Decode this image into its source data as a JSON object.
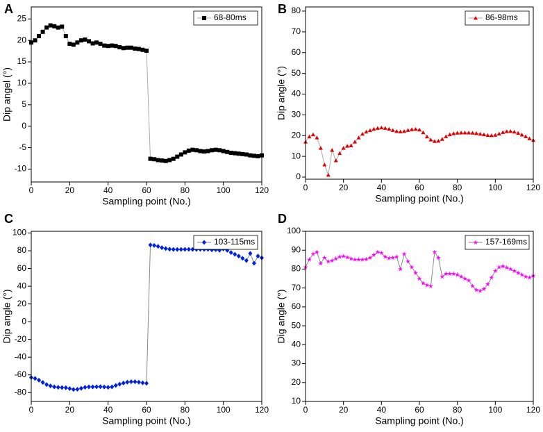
{
  "chart_data": [
    {
      "type": "line",
      "label": "A",
      "xlabel": "Sampling point (No.)",
      "ylabel": "Dip angel (°)",
      "x": [
        0,
        2,
        4,
        6,
        8,
        10,
        12,
        14,
        16,
        18,
        20,
        22,
        24,
        26,
        28,
        30,
        32,
        34,
        36,
        38,
        40,
        42,
        44,
        46,
        48,
        50,
        52,
        54,
        56,
        58,
        60,
        62,
        64,
        66,
        68,
        70,
        72,
        74,
        76,
        78,
        80,
        82,
        84,
        86,
        88,
        90,
        92,
        94,
        96,
        98,
        100,
        102,
        104,
        106,
        108,
        110,
        112,
        114,
        116,
        118,
        120
      ],
      "series": [
        {
          "name": "68-80ms",
          "color": "#000000",
          "line_color": "#aaaaaa",
          "marker": "square",
          "values": [
            19.5,
            20,
            21,
            22,
            23,
            23.5,
            23.3,
            23,
            23.2,
            21,
            19.2,
            19,
            19.5,
            20,
            20.2,
            19.8,
            19.3,
            19.5,
            19.2,
            18.8,
            18.7,
            18.8,
            18.7,
            18.4,
            18.2,
            18.3,
            18.3,
            18.1,
            18,
            17.8,
            17.6,
            -7.6,
            -7.7,
            -7.9,
            -8,
            -8.1,
            -7.9,
            -7.6,
            -7.1,
            -6.6,
            -6.1,
            -5.7,
            -5.5,
            -5.6,
            -5.8,
            -5.9,
            -5.8,
            -5.6,
            -5.5,
            -5.6,
            -5.8,
            -6,
            -6.2,
            -6.3,
            -6.4,
            -6.5,
            -6.6,
            -6.8,
            -6.9,
            -7,
            -6.8
          ]
        }
      ],
      "xlim": [
        0,
        120
      ],
      "xticks": [
        0,
        20,
        40,
        60,
        80,
        100,
        120
      ],
      "ylim": [
        -13,
        27.8
      ],
      "yticks": [
        -10,
        -5,
        0,
        5,
        10,
        15,
        20,
        25
      ],
      "legend": "upper right"
    },
    {
      "type": "line",
      "label": "B",
      "xlabel": "Sampling point (No.)",
      "ylabel": "Dip angle (°)",
      "x": [
        0,
        2,
        4,
        6,
        8,
        10,
        12,
        14,
        16,
        18,
        20,
        22,
        24,
        26,
        28,
        30,
        32,
        34,
        36,
        38,
        40,
        42,
        44,
        46,
        48,
        50,
        52,
        54,
        56,
        58,
        60,
        62,
        64,
        66,
        68,
        70,
        72,
        74,
        76,
        78,
        80,
        82,
        84,
        86,
        88,
        90,
        92,
        94,
        96,
        98,
        100,
        102,
        104,
        106,
        108,
        110,
        112,
        114,
        116,
        118,
        120
      ],
      "series": [
        {
          "name": "86-98ms",
          "color": "#e00000",
          "line_color": "#aaaaaa",
          "marker": "triangle",
          "values": [
            17,
            19.5,
            20.5,
            19,
            14,
            6,
            1,
            13,
            8,
            11.5,
            14,
            15,
            15.2,
            17,
            19,
            20.8,
            21.8,
            22.5,
            23.2,
            23.6,
            23.8,
            23.6,
            23.2,
            22.6,
            22.1,
            21.9,
            22.1,
            22.6,
            23,
            23.1,
            22.8,
            21.5,
            19.5,
            18,
            17.3,
            17.4,
            18.3,
            19.6,
            20.5,
            21,
            21.3,
            21.4,
            21.4,
            21.4,
            21.3,
            21.1,
            20.8,
            20.5,
            20.2,
            20.1,
            20.3,
            20.9,
            21.6,
            22,
            22.1,
            21.8,
            21.2,
            20.4,
            19.6,
            18.6,
            17.8
          ]
        }
      ],
      "xlim": [
        0,
        120
      ],
      "xticks": [
        0,
        20,
        40,
        60,
        80,
        100,
        120
      ],
      "ylim": [
        -1,
        82
      ],
      "yticks": [
        0,
        10,
        20,
        30,
        40,
        50,
        60,
        70,
        80
      ],
      "legend": "upper right"
    },
    {
      "type": "line",
      "label": "C",
      "xlabel": "Sampling point (No.)",
      "ylabel": "Dip angle (°)",
      "x": [
        0,
        2,
        4,
        6,
        8,
        10,
        12,
        14,
        16,
        18,
        20,
        22,
        24,
        26,
        28,
        30,
        32,
        34,
        36,
        38,
        40,
        42,
        44,
        46,
        48,
        50,
        52,
        54,
        56,
        58,
        60,
        62,
        64,
        66,
        68,
        70,
        72,
        74,
        76,
        78,
        80,
        82,
        84,
        86,
        88,
        90,
        92,
        94,
        96,
        98,
        100,
        102,
        104,
        106,
        108,
        110,
        112,
        114,
        116,
        118,
        120
      ],
      "series": [
        {
          "name": "103-115ms",
          "color": "#0020e0",
          "line_color": "#888888",
          "marker": "diamond",
          "values": [
            -63,
            -64,
            -66,
            -68.5,
            -71,
            -72.5,
            -73.5,
            -74,
            -74.3,
            -74.5,
            -75.5,
            -76.5,
            -76.3,
            -75.2,
            -74,
            -73.5,
            -73.5,
            -73.4,
            -73.3,
            -73.6,
            -74,
            -73.5,
            -72,
            -70.5,
            -69.2,
            -68.3,
            -67.8,
            -67.8,
            -68.3,
            -69,
            -69.5,
            86.5,
            86,
            85,
            83.5,
            82.5,
            81.8,
            81.5,
            81.5,
            81.5,
            81.6,
            81.6,
            81.5,
            81.5,
            81.6,
            81.5,
            81.6,
            81,
            81.2,
            80.5,
            82,
            80.5,
            78,
            76,
            74,
            71.5,
            69,
            77,
            66,
            74,
            72
          ]
        }
      ],
      "xlim": [
        0,
        120
      ],
      "xticks": [
        0,
        20,
        40,
        60,
        80,
        100,
        120
      ],
      "ylim": [
        -90,
        102
      ],
      "yticks": [
        -80,
        -60,
        -40,
        -20,
        0,
        20,
        40,
        60,
        80,
        100
      ],
      "legend": "upper right"
    },
    {
      "type": "line",
      "label": "D",
      "xlabel": "Sampling point (No.)",
      "ylabel": "Dig angle (°)",
      "x": [
        0,
        2,
        4,
        6,
        8,
        10,
        12,
        14,
        16,
        18,
        20,
        22,
        24,
        26,
        28,
        30,
        32,
        34,
        36,
        38,
        40,
        42,
        44,
        46,
        48,
        50,
        52,
        54,
        56,
        58,
        60,
        62,
        64,
        66,
        68,
        70,
        72,
        74,
        76,
        78,
        80,
        82,
        84,
        86,
        88,
        90,
        92,
        94,
        96,
        98,
        100,
        102,
        104,
        106,
        108,
        110,
        112,
        114,
        116,
        118,
        120
      ],
      "series": [
        {
          "name": "157-169ms",
          "color": "#ff00ff",
          "line_color": "#888888",
          "marker": "star",
          "values": [
            81,
            85,
            88,
            89,
            83,
            86,
            84,
            84.5,
            85.5,
            86.5,
            86.8,
            86.2,
            85.5,
            85,
            85,
            85,
            85.2,
            86,
            87.5,
            89,
            88.5,
            86.5,
            85.8,
            86,
            86.5,
            80,
            88,
            84,
            81,
            78,
            75,
            72.5,
            71.5,
            71,
            89,
            86,
            76,
            77.5,
            77.5,
            77.5,
            77,
            76,
            75,
            74,
            71,
            69,
            68.5,
            69.5,
            72,
            75.5,
            79,
            81,
            81.5,
            80.8,
            80,
            79,
            78,
            77,
            76,
            75.5,
            76.5
          ]
        }
      ],
      "xlim": [
        0,
        120
      ],
      "xticks": [
        0,
        20,
        40,
        60,
        80,
        100,
        120
      ],
      "ylim": [
        10,
        100
      ],
      "yticks": [
        10,
        20,
        30,
        40,
        50,
        60,
        70,
        80,
        90,
        100
      ],
      "legend": "upper right"
    }
  ]
}
